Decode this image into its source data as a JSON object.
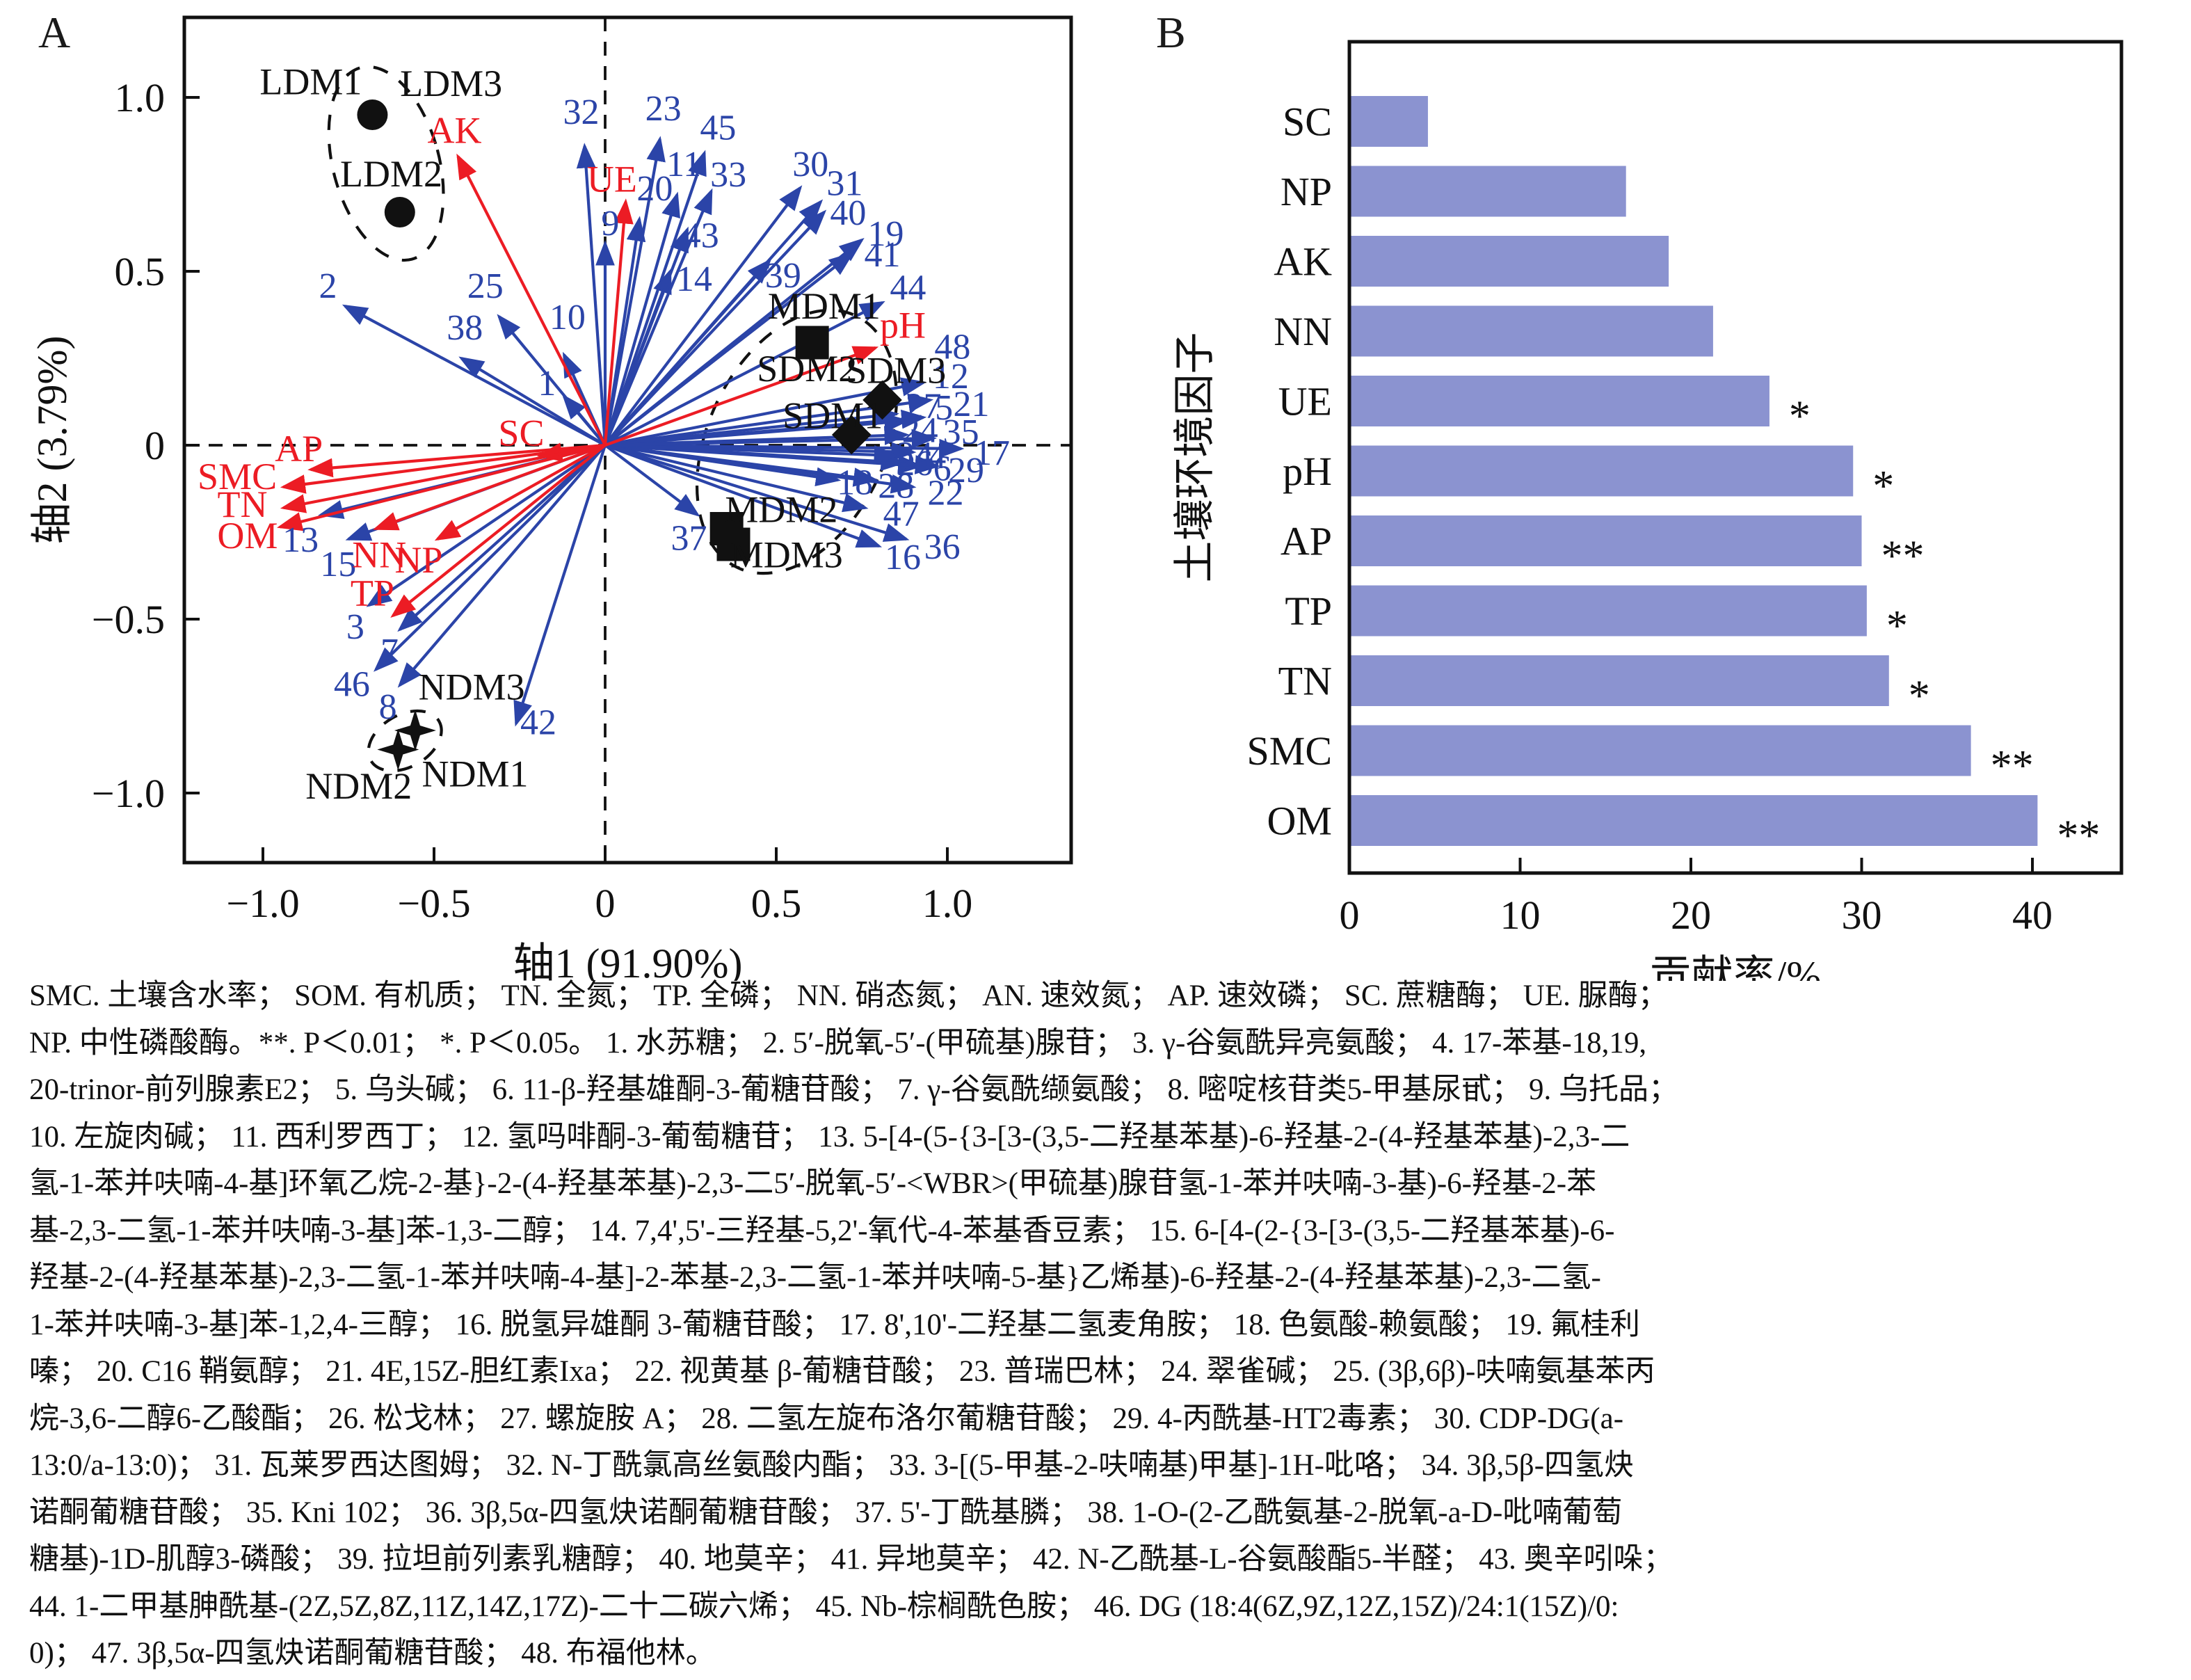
{
  "figure": {
    "panel_a_tag": "A",
    "panel_b_tag": "B"
  },
  "colors": {
    "compound_blue": "#2b44a8",
    "factor_red": "#ec1c24",
    "bar_fill": "#8b93d0",
    "text_black": "#1a1a1a"
  },
  "chart_data": [
    {
      "type": "scatter",
      "subtype": "rda-biplot",
      "title": "A",
      "xlabel": "轴1 (91.90%)",
      "ylabel": "轴2 (3.79%)",
      "xlim": [
        -1.23,
        1.36
      ],
      "ylim": [
        -1.2,
        1.23
      ],
      "x_ticks": [
        "-1.0",
        "-0.5",
        "0",
        "0.5",
        "1.0"
      ],
      "y_ticks": [
        "1.0",
        "0.5",
        "0",
        "-0.5",
        "-1.0"
      ],
      "grid": false,
      "compound_arrows": [
        {
          "label": "1",
          "tip": [
            -0.12,
            0.14
          ],
          "lab": [
            -0.17,
            0.18
          ]
        },
        {
          "label": "2",
          "tip": [
            -0.76,
            0.4
          ],
          "lab": [
            -0.81,
            0.46
          ]
        },
        {
          "label": "3",
          "tip": [
            -0.69,
            -0.46
          ],
          "lab": [
            -0.73,
            -0.52
          ]
        },
        {
          "label": "4",
          "tip": [
            0.9,
            -0.02
          ],
          "lab": [
            0.97,
            -0.03
          ]
        },
        {
          "label": "5",
          "tip": [
            0.88,
            0.07
          ],
          "lab": [
            0.99,
            0.11
          ]
        },
        {
          "label": "6",
          "tip": [
            0.92,
            -0.06
          ],
          "lab": [
            0.985,
            -0.065
          ]
        },
        {
          "label": "7",
          "tip": [
            -0.6,
            -0.53
          ],
          "lab": [
            -0.63,
            -0.59
          ]
        },
        {
          "label": "8",
          "tip": [
            -0.6,
            -0.69
          ],
          "lab": [
            -0.635,
            -0.75
          ]
        },
        {
          "label": "9",
          "tip": [
            0.0,
            0.58
          ],
          "lab": [
            0.015,
            0.64
          ]
        },
        {
          "label": "10",
          "tip": [
            -0.12,
            0.26
          ],
          "lab": [
            -0.11,
            0.37
          ]
        },
        {
          "label": "11",
          "tip": [
            0.21,
            0.72
          ],
          "lab": [
            0.23,
            0.81
          ]
        },
        {
          "label": "12",
          "tip": [
            0.95,
            0.13
          ],
          "lab": [
            1.01,
            0.2
          ]
        },
        {
          "label": "13",
          "tip": [
            -0.83,
            -0.2
          ],
          "lab": [
            -0.89,
            -0.27
          ]
        },
        {
          "label": "14",
          "tip": [
            0.19,
            0.5
          ],
          "lab": [
            0.26,
            0.48
          ]
        },
        {
          "label": "15",
          "tip": [
            -0.75,
            -0.27
          ],
          "lab": [
            -0.78,
            -0.34
          ]
        },
        {
          "label": "16",
          "tip": [
            0.8,
            -0.29
          ],
          "lab": [
            0.87,
            -0.32
          ]
        },
        {
          "label": "17",
          "tip": [
            1.04,
            -0.01
          ],
          "lab": [
            1.13,
            -0.02
          ]
        },
        {
          "label": "18",
          "tip": [
            0.68,
            -0.1
          ],
          "lab": [
            0.73,
            -0.105
          ]
        },
        {
          "label": "19",
          "tip": [
            0.75,
            0.59
          ],
          "lab": [
            0.82,
            0.61
          ]
        },
        {
          "label": "20",
          "tip": [
            0.1,
            0.65
          ],
          "lab": [
            0.145,
            0.74
          ]
        },
        {
          "label": "21",
          "tip": [
            0.93,
            0.08
          ],
          "lab": [
            1.07,
            0.12
          ]
        },
        {
          "label": "22",
          "tip": [
            0.9,
            -0.12
          ],
          "lab": [
            0.995,
            -0.135
          ]
        },
        {
          "label": "23",
          "tip": [
            0.16,
            0.88
          ],
          "lab": [
            0.17,
            0.97
          ]
        },
        {
          "label": "24",
          "tip": [
            0.88,
            0.03
          ],
          "lab": [
            0.92,
            0.045
          ]
        },
        {
          "label": "25",
          "tip": [
            -0.31,
            0.37
          ],
          "lab": [
            -0.35,
            0.46
          ]
        },
        {
          "label": "26",
          "tip": [
            0.87,
            -0.05
          ],
          "lab": [
            0.905,
            -0.05
          ]
        },
        {
          "label": "27",
          "tip": [
            0.85,
            0.09
          ],
          "lab": [
            0.93,
            0.115
          ]
        },
        {
          "label": "28",
          "tip": [
            0.79,
            -0.1
          ],
          "lab": [
            0.85,
            -0.115
          ]
        },
        {
          "label": "29",
          "tip": [
            0.97,
            -0.06
          ],
          "lab": [
            1.055,
            -0.07
          ]
        },
        {
          "label": "30",
          "tip": [
            0.57,
            0.74
          ],
          "lab": [
            0.6,
            0.81
          ]
        },
        {
          "label": "31",
          "tip": [
            0.63,
            0.7
          ],
          "lab": [
            0.7,
            0.755
          ]
        },
        {
          "label": "32",
          "tip": [
            -0.06,
            0.86
          ],
          "lab": [
            -0.07,
            0.96
          ]
        },
        {
          "label": "33",
          "tip": [
            0.31,
            0.73
          ],
          "lab": [
            0.36,
            0.78
          ]
        },
        {
          "label": "34",
          "tip": [
            0.85,
            -0.03
          ],
          "lab": [
            0.905,
            -0.025
          ]
        },
        {
          "label": "35",
          "tip": [
            0.96,
            0.02
          ],
          "lab": [
            1.04,
            0.04
          ]
        },
        {
          "label": "36",
          "tip": [
            0.88,
            -0.27
          ],
          "lab": [
            0.985,
            -0.29
          ]
        },
        {
          "label": "37",
          "tip": [
            0.27,
            -0.2
          ],
          "lab": [
            0.245,
            -0.265
          ]
        },
        {
          "label": "38",
          "tip": [
            -0.42,
            0.25
          ],
          "lab": [
            -0.41,
            0.34
          ]
        },
        {
          "label": "39",
          "tip": [
            0.48,
            0.53
          ],
          "lab": [
            0.52,
            0.49
          ]
        },
        {
          "label": "40",
          "tip": [
            0.64,
            0.67
          ],
          "lab": [
            0.71,
            0.67
          ]
        },
        {
          "label": "41",
          "tip": [
            0.72,
            0.55
          ],
          "lab": [
            0.81,
            0.55
          ]
        },
        {
          "label": "42",
          "tip": [
            -0.26,
            -0.8
          ],
          "lab": [
            -0.195,
            -0.795
          ]
        },
        {
          "label": "43",
          "tip": [
            0.24,
            0.62
          ],
          "lab": [
            0.28,
            0.605
          ]
        },
        {
          "label": "44",
          "tip": [
            0.81,
            0.41
          ],
          "lab": [
            0.885,
            0.455
          ]
        },
        {
          "label": "45",
          "tip": [
            0.29,
            0.84
          ],
          "lab": [
            0.33,
            0.915
          ]
        },
        {
          "label": "46",
          "tip": [
            -0.67,
            -0.645
          ],
          "lab": [
            -0.74,
            -0.685
          ]
        },
        {
          "label": "47",
          "tip": [
            0.76,
            -0.18
          ],
          "lab": [
            0.865,
            -0.195
          ]
        },
        {
          "label": "48",
          "tip": [
            0.93,
            0.18
          ],
          "lab": [
            1.015,
            0.285
          ]
        }
      ],
      "factor_arrows": [
        {
          "label": "AK",
          "tip": [
            -0.43,
            0.83
          ],
          "lab": [
            -0.44,
            0.905
          ]
        },
        {
          "label": "UE",
          "tip": [
            0.06,
            0.7
          ],
          "lab": [
            0.02,
            0.765
          ]
        },
        {
          "label": "pH",
          "tip": [
            0.79,
            0.28
          ],
          "lab": [
            0.87,
            0.345
          ]
        },
        {
          "label": "SC",
          "tip": [
            -0.19,
            -0.03
          ],
          "lab": [
            -0.245,
            0.035
          ]
        },
        {
          "label": "AP",
          "tip": [
            -0.86,
            -0.07
          ],
          "lab": [
            -0.895,
            -0.01
          ]
        },
        {
          "label": "SMC",
          "tip": [
            -0.94,
            -0.12
          ],
          "lab": [
            -1.075,
            -0.09
          ]
        },
        {
          "label": "TN",
          "tip": [
            -0.94,
            -0.18
          ],
          "lab": [
            -1.06,
            -0.17
          ]
        },
        {
          "label": "OM",
          "tip": [
            -0.95,
            -0.235
          ],
          "lab": [
            -1.045,
            -0.26
          ]
        },
        {
          "label": "NN",
          "tip": [
            -0.67,
            -0.24
          ],
          "lab": [
            -0.66,
            -0.315
          ]
        },
        {
          "label": "NP",
          "tip": [
            -0.49,
            -0.27
          ],
          "lab": [
            -0.545,
            -0.33
          ]
        },
        {
          "label": "TP",
          "tip": [
            -0.62,
            -0.49
          ],
          "lab": [
            -0.68,
            -0.425
          ]
        }
      ],
      "samples": [
        {
          "label": "LDM1",
          "marker": "circle",
          "pos": [
            -0.68,
            0.95
          ],
          "lab": [
            -0.86,
            1.045
          ]
        },
        {
          "label": "LDM2",
          "marker": "circle",
          "pos": [
            -0.6,
            0.67
          ],
          "lab": [
            -0.625,
            0.78
          ]
        },
        {
          "label": "LDM3",
          "marker": "none",
          "pos": null,
          "lab": [
            -0.45,
            1.04
          ]
        },
        {
          "label": "MDM1",
          "marker": "square",
          "pos": [
            0.605,
            0.295
          ],
          "lab": [
            0.64,
            0.4
          ]
        },
        {
          "label": "MDM2",
          "marker": "square",
          "pos": [
            0.355,
            -0.24
          ],
          "lab": [
            0.515,
            -0.185
          ]
        },
        {
          "label": "MDM3",
          "marker": "square",
          "pos": [
            0.375,
            -0.285
          ],
          "lab": [
            0.53,
            -0.315
          ]
        },
        {
          "label": "SDM1",
          "marker": "diamond",
          "pos": [
            0.72,
            0.03
          ],
          "lab": [
            0.665,
            0.085
          ]
        },
        {
          "label": "SDM2",
          "marker": "none",
          "pos": null,
          "lab": [
            0.59,
            0.22
          ]
        },
        {
          "label": "SDM3",
          "marker": "diamond",
          "pos": [
            0.81,
            0.13
          ],
          "lab": [
            0.85,
            0.215
          ]
        },
        {
          "label": "NDM1",
          "marker": "star4",
          "pos": [
            -0.555,
            -0.82
          ],
          "lab": [
            -0.38,
            -0.945
          ]
        },
        {
          "label": "NDM2",
          "marker": "star4",
          "pos": [
            -0.605,
            -0.875
          ],
          "lab": [
            -0.72,
            -0.98
          ]
        },
        {
          "label": "NDM3",
          "marker": "none",
          "pos": null,
          "lab": [
            -0.39,
            -0.695
          ]
        }
      ],
      "cluster_ellipses": [
        {
          "cx": -0.64,
          "cy": 0.81,
          "rx": 0.155,
          "ry": 0.285,
          "rot": -15
        },
        {
          "cx": 0.56,
          "cy": 0.01,
          "rx": 0.26,
          "ry": 0.4,
          "rot": 25
        },
        {
          "cx": -0.585,
          "cy": -0.85,
          "rx": 0.115,
          "ry": 0.075,
          "rot": -30
        }
      ]
    },
    {
      "type": "bar",
      "orientation": "horizontal",
      "title": "B",
      "categories": [
        "SC",
        "NP",
        "AK",
        "NN",
        "UE",
        "pH",
        "AP",
        "TP",
        "TN",
        "SMC",
        "OM"
      ],
      "values": [
        4.6,
        16.2,
        18.7,
        21.3,
        24.6,
        29.5,
        30.0,
        30.3,
        31.6,
        36.4,
        40.3
      ],
      "significance": [
        "",
        "",
        "",
        "",
        "*",
        "*",
        "**",
        "*",
        "*",
        "**",
        "**"
      ],
      "xlabel": "贡献率/%",
      "ylabel": "土壤环境因子",
      "xlim": [
        0,
        45.2
      ],
      "x_ticks": [
        "0",
        "10",
        "20",
        "30",
        "40"
      ],
      "legend": null,
      "grid": false
    }
  ],
  "caption_lines": [
    "SMC. 土壤含水率； SOM. 有机质； TN. 全氮； TP. 全磷； NN. 硝态氮； AN. 速效氮； AP. 速效磷； SC. 蔗糖酶； UE. 脲酶；",
    "NP. 中性磷酸酶。**. P＜0.01； *. P＜0.05。 1. 水苏糖； 2. 5′-脱氧-5′-(甲硫基)腺苷； 3. γ-谷氨酰异亮氨酸； 4. 17-苯基-18,19,",
    "20-trinor-前列腺素E2； 5. 乌头碱； 6. 11-β-羟基雄酮-3-葡糖苷酸； 7. γ-谷氨酰缬氨酸； 8. 嘧啶核苷类5-甲基尿甙； 9. 乌托品；",
    "10. 左旋肉碱； 11. 西利罗西丁； 12. 氢吗啡酮-3-葡萄糖苷； 13. 5-[4-(5-{3-[3-(3,5-二羟基苯基)-6-羟基-2-(4-羟基苯基)-2,3-二",
    "氢-1-苯并呋喃-4-基]环氧乙烷-2-基}-2-(4-羟基苯基)-2,3-二5′-脱氧-5′-<WBR>(甲硫基)腺苷氢-1-苯并呋喃-3-基)-6-羟基-2-苯",
    "基-2,3-二氢-1-苯并呋喃-3-基]苯-1,3-二醇； 14. 7,4',5'-三羟基-5,2'-氧代-4-苯基香豆素； 15. 6-[4-(2-{3-[3-(3,5-二羟基苯基)-6-",
    "羟基-2-(4-羟基苯基)-2,3-二氢-1-苯并呋喃-4-基]-2-苯基-2,3-二氢-1-苯并呋喃-5-基}乙烯基)-6-羟基-2-(4-羟基苯基)-2,3-二氢-",
    "1-苯并呋喃-3-基]苯-1,2,4-三醇； 16. 脱氢异雄酮 3-葡糖苷酸； 17. 8',10'-二羟基二氢麦角胺； 18. 色氨酸-赖氨酸； 19. 氟桂利",
    "嗪； 20. C16 鞘氨醇； 21. 4E,15Z-胆红素Ixa； 22. 视黄基 β-葡糖苷酸； 23. 普瑞巴林； 24. 翠雀碱； 25. (3β,6β)-呋喃氨基苯丙",
    "烷-3,6-二醇6-乙酸酯； 26. 松戈林； 27. 螺旋胺 A； 28. 二氢左旋布洛尔葡糖苷酸； 29. 4-丙酰基-HT2毒素； 30. CDP-DG(a-",
    "13:0/a-13:0)； 31. 瓦莱罗西达图姆； 32. N-丁酰氯高丝氨酸内酯； 33. 3-[(5-甲基-2-呋喃基)甲基]-1H-吡咯； 34. 3β,5β-四氢炔",
    "诺酮葡糖苷酸； 35. Kni 102； 36. 3β,5α-四氢炔诺酮葡糖苷酸； 37. 5'-丁酰基膦； 38. 1-O-(2-乙酰氨基-2-脱氧-a-D-吡喃葡萄",
    "糖基)-1D-肌醇3-磷酸； 39. 拉坦前列素乳糖醇； 40. 地莫辛； 41. 异地莫辛； 42. N-乙酰基-L-谷氨酸酯5-半醛； 43. 奥辛吲哚；",
    "44. 1-二甲基胂酰基-(2Z,5Z,8Z,11Z,14Z,17Z)-二十二碳六烯； 45. Nb-棕榈酰色胺； 46. DG (18:4(6Z,9Z,12Z,15Z)/24:1(15Z)/0:",
    "0)； 47. 3β,5α-四氢炔诺酮葡糖苷酸； 48. 布福他林。"
  ]
}
